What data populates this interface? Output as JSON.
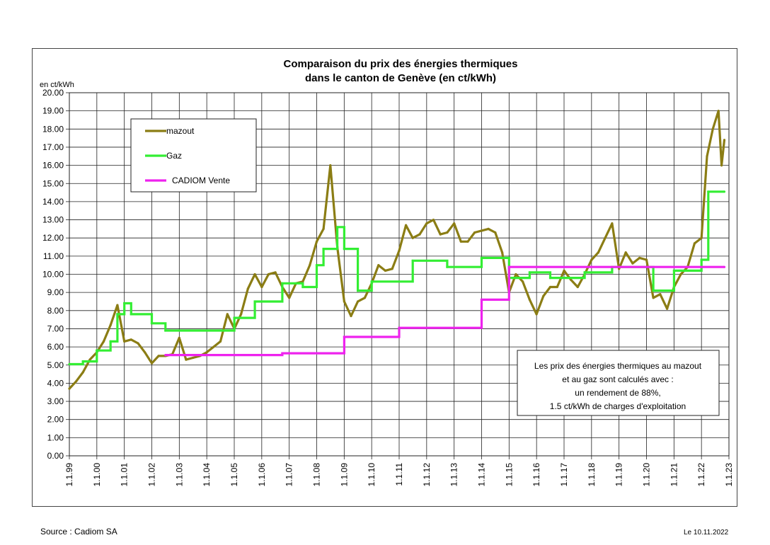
{
  "chart_data": {
    "type": "line",
    "title": [
      "Comparaison du prix des énergies thermiques",
      "dans le canton de Genève (en ct/kWh)"
    ],
    "ylabel": "en ct/kWh",
    "ylim": [
      0,
      20
    ],
    "yticks": [
      "0.00",
      "1.00",
      "2.00",
      "3.00",
      "4.00",
      "5.00",
      "6.00",
      "7.00",
      "8.00",
      "9.00",
      "10.00",
      "11.00",
      "12.00",
      "13.00",
      "14.00",
      "15.00",
      "16.00",
      "17.00",
      "18.00",
      "19.00",
      "20.00"
    ],
    "xticks": [
      "1.1.99",
      "1.1.00",
      "1.1.01",
      "1.1.02",
      "1.1.03",
      "1.1.04",
      "1.1.05",
      "1.1.06",
      "1.1.07",
      "1.1.08",
      "1.1.09",
      "1.1.10",
      "1.1.11",
      "1.1.12",
      "1.1.13",
      "1.1.14",
      "1.1.15",
      "1.1.16",
      "1.1.17",
      "1.1.18",
      "1.1.19",
      "1.1.20",
      "1.1.21",
      "1.1.22",
      "1.1.23"
    ],
    "xlim": [
      "1999-01-01",
      "2023-01-01"
    ],
    "grid": true,
    "legend_position": "top-left",
    "series": [
      {
        "name": "mazout",
        "color": "#8b7d14",
        "points": [
          [
            "1999-01-01",
            3.7
          ],
          [
            "1999-04-01",
            4.1
          ],
          [
            "1999-07-01",
            4.6
          ],
          [
            "1999-10-01",
            5.3
          ],
          [
            "2000-01-01",
            5.7
          ],
          [
            "2000-04-01",
            6.3
          ],
          [
            "2000-07-01",
            7.2
          ],
          [
            "2000-10-01",
            8.3
          ],
          [
            "2001-01-01",
            6.3
          ],
          [
            "2001-04-01",
            6.4
          ],
          [
            "2001-07-01",
            6.2
          ],
          [
            "2001-10-01",
            5.7
          ],
          [
            "2002-01-01",
            5.1
          ],
          [
            "2002-04-01",
            5.5
          ],
          [
            "2002-07-01",
            5.5
          ],
          [
            "2002-10-01",
            5.6
          ],
          [
            "2003-01-01",
            6.5
          ],
          [
            "2003-04-01",
            5.3
          ],
          [
            "2003-07-01",
            5.4
          ],
          [
            "2003-10-01",
            5.5
          ],
          [
            "2004-01-01",
            5.7
          ],
          [
            "2004-04-01",
            6.0
          ],
          [
            "2004-07-01",
            6.3
          ],
          [
            "2004-10-01",
            7.8
          ],
          [
            "2005-01-01",
            7.0
          ],
          [
            "2005-04-01",
            7.8
          ],
          [
            "2005-07-01",
            9.2
          ],
          [
            "2005-10-01",
            10.0
          ],
          [
            "2006-01-01",
            9.3
          ],
          [
            "2006-04-01",
            10.0
          ],
          [
            "2006-07-01",
            10.1
          ],
          [
            "2006-10-01",
            9.3
          ],
          [
            "2007-01-01",
            8.7
          ],
          [
            "2007-04-01",
            9.5
          ],
          [
            "2007-07-01",
            9.6
          ],
          [
            "2007-10-01",
            10.5
          ],
          [
            "2008-01-01",
            11.8
          ],
          [
            "2008-04-01",
            12.5
          ],
          [
            "2008-07-01",
            16.0
          ],
          [
            "2008-10-01",
            11.5
          ],
          [
            "2009-01-01",
            8.5
          ],
          [
            "2009-04-01",
            7.7
          ],
          [
            "2009-07-01",
            8.5
          ],
          [
            "2009-10-01",
            8.7
          ],
          [
            "2010-01-01",
            9.5
          ],
          [
            "2010-04-01",
            10.5
          ],
          [
            "2010-07-01",
            10.2
          ],
          [
            "2010-10-01",
            10.3
          ],
          [
            "2011-01-01",
            11.3
          ],
          [
            "2011-04-01",
            12.7
          ],
          [
            "2011-07-01",
            12.0
          ],
          [
            "2011-10-01",
            12.2
          ],
          [
            "2012-01-01",
            12.8
          ],
          [
            "2012-04-01",
            13.0
          ],
          [
            "2012-07-01",
            12.2
          ],
          [
            "2012-10-01",
            12.3
          ],
          [
            "2013-01-01",
            12.8
          ],
          [
            "2013-04-01",
            11.8
          ],
          [
            "2013-07-01",
            11.8
          ],
          [
            "2013-10-01",
            12.3
          ],
          [
            "2014-01-01",
            12.4
          ],
          [
            "2014-04-01",
            12.5
          ],
          [
            "2014-07-01",
            12.3
          ],
          [
            "2014-10-01",
            11.2
          ],
          [
            "2015-01-01",
            9.0
          ],
          [
            "2015-04-01",
            10.0
          ],
          [
            "2015-07-01",
            9.6
          ],
          [
            "2015-10-01",
            8.6
          ],
          [
            "2016-01-01",
            7.8
          ],
          [
            "2016-04-01",
            8.8
          ],
          [
            "2016-07-01",
            9.3
          ],
          [
            "2016-10-01",
            9.3
          ],
          [
            "2017-01-01",
            10.2
          ],
          [
            "2017-04-01",
            9.7
          ],
          [
            "2017-07-01",
            9.3
          ],
          [
            "2017-10-01",
            10.0
          ],
          [
            "2018-01-01",
            10.8
          ],
          [
            "2018-04-01",
            11.2
          ],
          [
            "2018-07-01",
            12.0
          ],
          [
            "2018-10-01",
            12.8
          ],
          [
            "2019-01-01",
            10.3
          ],
          [
            "2019-04-01",
            11.2
          ],
          [
            "2019-07-01",
            10.6
          ],
          [
            "2019-10-01",
            10.9
          ],
          [
            "2020-01-01",
            10.8
          ],
          [
            "2020-04-01",
            8.7
          ],
          [
            "2020-07-01",
            8.9
          ],
          [
            "2020-10-01",
            8.1
          ],
          [
            "2021-01-01",
            9.3
          ],
          [
            "2021-04-01",
            10.0
          ],
          [
            "2021-07-01",
            10.4
          ],
          [
            "2021-10-01",
            11.7
          ],
          [
            "2022-01-01",
            12.0
          ],
          [
            "2022-03-15",
            16.5
          ],
          [
            "2022-06-01",
            18.0
          ],
          [
            "2022-08-15",
            19.0
          ],
          [
            "2022-09-25",
            16.0
          ],
          [
            "2022-11-01",
            17.4
          ]
        ]
      },
      {
        "name": "Gaz",
        "color": "#33ee33",
        "steps": [
          [
            "1999-01-01",
            5.05
          ],
          [
            "1999-07-01",
            5.2
          ],
          [
            "2000-01-01",
            5.8
          ],
          [
            "2000-07-01",
            6.3
          ],
          [
            "2000-10-01",
            7.8
          ],
          [
            "2001-01-01",
            8.4
          ],
          [
            "2001-04-01",
            7.8
          ],
          [
            "2002-01-01",
            7.3
          ],
          [
            "2002-07-01",
            6.9
          ],
          [
            "2005-01-01",
            7.6
          ],
          [
            "2005-10-01",
            8.5
          ],
          [
            "2006-10-01",
            9.5
          ],
          [
            "2007-07-01",
            9.3
          ],
          [
            "2008-01-01",
            10.5
          ],
          [
            "2008-04-01",
            11.4
          ],
          [
            "2008-10-01",
            12.6
          ],
          [
            "2009-01-01",
            11.4
          ],
          [
            "2009-07-01",
            9.1
          ],
          [
            "2010-01-01",
            9.6
          ],
          [
            "2011-07-01",
            10.75
          ],
          [
            "2012-10-01",
            10.4
          ],
          [
            "2014-01-01",
            10.9
          ],
          [
            "2015-01-01",
            9.8
          ],
          [
            "2015-10-01",
            10.1
          ],
          [
            "2016-07-01",
            9.8
          ],
          [
            "2017-10-01",
            10.1
          ],
          [
            "2018-10-01",
            10.4
          ],
          [
            "2020-04-01",
            9.1
          ],
          [
            "2021-01-01",
            10.2
          ],
          [
            "2022-01-01",
            10.8
          ],
          [
            "2022-04-01",
            14.55
          ],
          [
            "2022-11-01",
            14.55
          ]
        ]
      },
      {
        "name": "CADIOM   Vente",
        "color": "#ee22ee",
        "steps": [
          [
            "2002-07-01",
            5.55
          ],
          [
            "2006-10-01",
            5.65
          ],
          [
            "2009-01-01",
            6.55
          ],
          [
            "2011-01-01",
            7.05
          ],
          [
            "2014-01-01",
            8.6
          ],
          [
            "2015-01-01",
            10.4
          ],
          [
            "2022-11-01",
            10.4
          ]
        ]
      }
    ],
    "annotation": [
      "Les prix des énergies thermiques  au mazout",
      "et au gaz sont calculés avec :",
      "un rendement de 88%,",
      "1.5 ct/kWh de charges d'exploitation"
    ]
  },
  "footer": {
    "source": "Source : Cadiom SA",
    "date": "Le 10.11.2022"
  }
}
